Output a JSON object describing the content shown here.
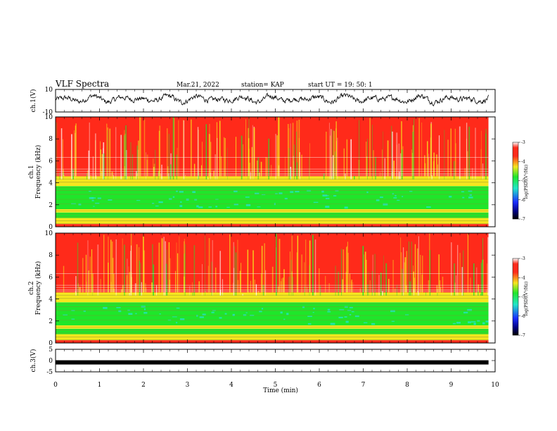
{
  "header": {
    "title": "VLF Spectra",
    "date": "Mar.21, 2022",
    "station": "station= KAP",
    "start": "start  UT =  19: 50: 1"
  },
  "colors": {
    "red": "#ff2a1a",
    "yellow": "#f5e61e",
    "green": "#1fe62a",
    "cyan": "#21e6c8",
    "blue": "#1a2cff",
    "black": "#000000"
  },
  "chart_data": [
    {
      "type": "line",
      "panel": "ch1-waveform",
      "ylabel": "ch.1(V)",
      "ylim": [
        -10,
        10
      ],
      "yticks": [
        "10",
        "-10"
      ],
      "x_range_min": [
        0,
        9.85
      ],
      "description_values": "noisy waveform oscillating around ~0 to +3 V"
    },
    {
      "type": "heatmap",
      "panel": "ch1-spectrogram",
      "ylabel_line1": "ch.1",
      "ylabel_line2": "Frequency (kHz)",
      "ylim": [
        0,
        10
      ],
      "yticks": [
        "0",
        "2",
        "4",
        "6",
        "8",
        "10"
      ],
      "x_range_min": [
        0,
        9.85
      ],
      "colorbar": {
        "label": "log(PSD)(V²/Hz)",
        "range": [
          -7,
          -3
        ],
        "ticks": [
          "-3",
          "-4",
          "-5",
          "-6",
          "-7"
        ]
      }
    },
    {
      "type": "heatmap",
      "panel": "ch2-spectrogram",
      "ylabel_line1": "ch.2",
      "ylabel_line2": "Frequency (kHz)",
      "ylim": [
        0,
        10
      ],
      "yticks": [
        "0",
        "2",
        "4",
        "6",
        "8",
        "10"
      ],
      "x_range_min": [
        0,
        9.85
      ],
      "colorbar": {
        "label": "log(PSD)(V²/Hz)",
        "range": [
          -7,
          -3
        ],
        "ticks": [
          "-3",
          "-4",
          "-5",
          "-6",
          "-7"
        ]
      }
    },
    {
      "type": "line",
      "panel": "ch3-waveform",
      "ylabel": "ch.3(V)",
      "ylim": [
        -5,
        5
      ],
      "yticks": [
        "5",
        "0",
        "-5"
      ],
      "x_range_min": [
        0,
        9.85
      ],
      "value_constant": -0.8
    }
  ],
  "xaxis": {
    "label": "Time (min)",
    "ticks": [
      "0",
      "1",
      "2",
      "3",
      "4",
      "5",
      "6",
      "7",
      "8",
      "9",
      "10"
    ],
    "xlim": [
      0,
      10
    ]
  }
}
